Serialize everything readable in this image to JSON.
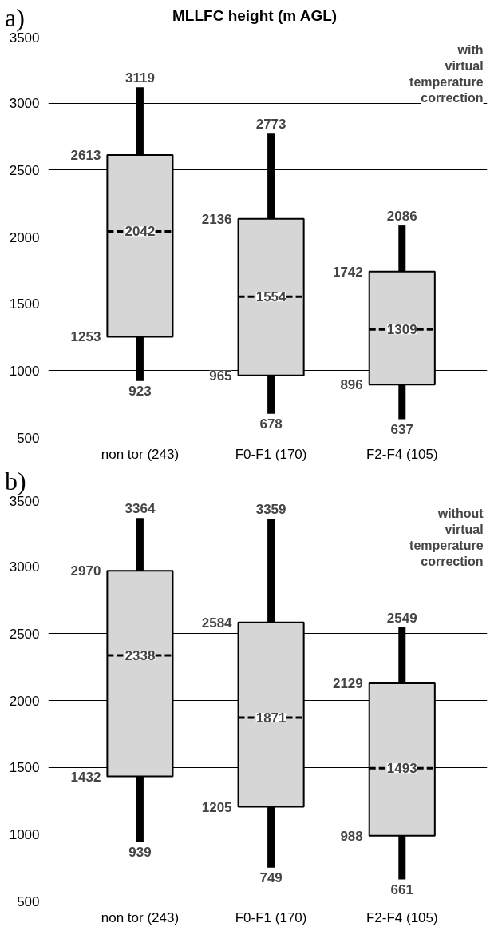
{
  "chart_data": [
    {
      "type": "box",
      "title": "MLLFC height (m AGL)",
      "annotations": [
        "a)",
        "with virtual temperature correction",
        {
          "text": "3119",
          "x": "non tor (243)",
          "y": 3119
        },
        {
          "text": "2613",
          "x": "non tor (243)",
          "y": 2613
        },
        {
          "text": "2042",
          "x": "non tor (243)",
          "y": 2042
        },
        {
          "text": "1253",
          "x": "non tor (243)",
          "y": 1253
        },
        {
          "text": "923",
          "x": "non tor (243)",
          "y": 923
        },
        {
          "text": "2773",
          "x": "F0-F1 (170)",
          "y": 2773
        },
        {
          "text": "2136",
          "x": "F0-F1 (170)",
          "y": 2136
        },
        {
          "text": "1554",
          "x": "F0-F1 (170)",
          "y": 1554
        },
        {
          "text": "965",
          "x": "F0-F1 (170)",
          "y": 965
        },
        {
          "text": "678",
          "x": "F0-F1 (170)",
          "y": 678
        },
        {
          "text": "2086",
          "x": "F2-F4 (105)",
          "y": 2086
        },
        {
          "text": "1742",
          "x": "F2-F4 (105)",
          "y": 1742
        },
        {
          "text": "1309",
          "x": "F2-F4 (105)",
          "y": 1309
        },
        {
          "text": "896",
          "x": "F2-F4 (105)",
          "y": 896
        },
        {
          "text": "637",
          "x": "F2-F4 (105)",
          "y": 637
        }
      ],
      "categories": [
        "non tor (243)",
        "F0-F1 (170)",
        "F2-F4 (105)"
      ],
      "series": [
        {
          "color": "#d6d6d6",
          "boxes": [
            {
              "low": 923,
              "q1": 1253,
              "median": 2042,
              "q3": 2613,
              "high": 3119
            },
            {
              "low": 678,
              "q1": 965,
              "median": 1554,
              "q3": 2136,
              "high": 2773
            },
            {
              "low": 637,
              "q1": 896,
              "median": 1309,
              "q3": 1742,
              "high": 2086
            }
          ]
        }
      ],
      "ylim": [
        500,
        3500
      ],
      "yticks": [
        500,
        1000,
        1500,
        2000,
        2500,
        3000,
        3500
      ],
      "grid": "y"
    },
    {
      "type": "box",
      "annotations": [
        "b)",
        "without virtual temperature correction",
        {
          "text": "3364",
          "x": "non tor (243)",
          "y": 3364
        },
        {
          "text": "2970",
          "x": "non tor (243)",
          "y": 2970
        },
        {
          "text": "2338",
          "x": "non tor (243)",
          "y": 2338
        },
        {
          "text": "1432",
          "x": "non tor (243)",
          "y": 1432
        },
        {
          "text": "939",
          "x": "non tor (243)",
          "y": 939
        },
        {
          "text": "3359",
          "x": "F0-F1 (170)",
          "y": 3359
        },
        {
          "text": "2584",
          "x": "F0-F1 (170)",
          "y": 2584
        },
        {
          "text": "1871",
          "x": "F0-F1 (170)",
          "y": 1871
        },
        {
          "text": "1205",
          "x": "F0-F1 (170)",
          "y": 1205
        },
        {
          "text": "749",
          "x": "F0-F1 (170)",
          "y": 749
        },
        {
          "text": "2549",
          "x": "F2-F4 (105)",
          "y": 2549
        },
        {
          "text": "2129",
          "x": "F2-F4 (105)",
          "y": 2129
        },
        {
          "text": "1493",
          "x": "F2-F4 (105)",
          "y": 1493
        },
        {
          "text": "988",
          "x": "F2-F4 (105)",
          "y": 988
        },
        {
          "text": "661",
          "x": "F2-F4 (105)",
          "y": 661
        }
      ],
      "categories": [
        "non tor (243)",
        "F0-F1 (170)",
        "F2-F4 (105)"
      ],
      "series": [
        {
          "color": "#d6d6d6",
          "boxes": [
            {
              "low": 939,
              "q1": 1432,
              "median": 2338,
              "q3": 2970,
              "high": 3364
            },
            {
              "low": 749,
              "q1": 1205,
              "median": 1871,
              "q3": 2584,
              "high": 3359
            },
            {
              "low": 661,
              "q1": 988,
              "median": 1493,
              "q3": 2129,
              "high": 2549
            }
          ]
        }
      ],
      "ylim": [
        500,
        3500
      ],
      "yticks": [
        500,
        1000,
        1500,
        2000,
        2500,
        3000,
        3500
      ],
      "grid": "y"
    }
  ]
}
